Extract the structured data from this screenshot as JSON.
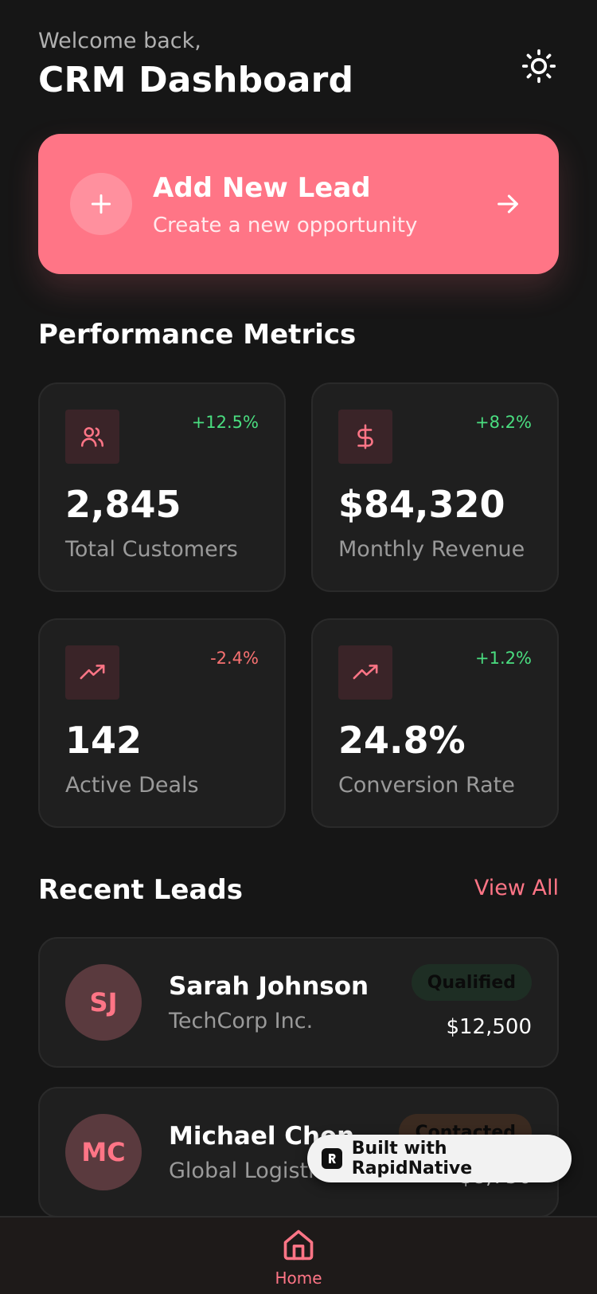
{
  "header": {
    "welcome": "Welcome back,",
    "title": "CRM Dashboard"
  },
  "add_lead": {
    "title": "Add New Lead",
    "subtitle": "Create a new opportunity"
  },
  "metrics_section": {
    "title": "Performance Metrics"
  },
  "metrics": [
    {
      "icon": "users-icon",
      "change": "+12.5%",
      "value": "2,845",
      "label": "Total Customers",
      "trend": "up"
    },
    {
      "icon": "dollar-icon",
      "change": "+8.2%",
      "value": "$84,320",
      "label": "Monthly Revenue",
      "trend": "up"
    },
    {
      "icon": "trending-up-icon",
      "change": "-2.4%",
      "value": "142",
      "label": "Active Deals",
      "trend": "down"
    },
    {
      "icon": "trending-up-icon",
      "change": "+1.2%",
      "value": "24.8%",
      "label": "Conversion Rate",
      "trend": "up"
    }
  ],
  "leads_section": {
    "title": "Recent Leads",
    "view_all": "View All"
  },
  "leads": [
    {
      "initials": "SJ",
      "name": "Sarah Johnson",
      "company": "TechCorp Inc.",
      "status": "Qualified",
      "amount": "$12,500"
    },
    {
      "initials": "MC",
      "name": "Michael Chen",
      "company": "Global Logistics",
      "status": "Contacted",
      "amount": "$8,750"
    }
  ],
  "badge": {
    "text": "Built with RapidNative"
  },
  "tabbar": {
    "home_label": "Home"
  },
  "colors": {
    "accent": "#ff7586",
    "positive": "#4ade80",
    "negative": "#f87171",
    "background": "#161616",
    "card": "#1f1f1f"
  }
}
